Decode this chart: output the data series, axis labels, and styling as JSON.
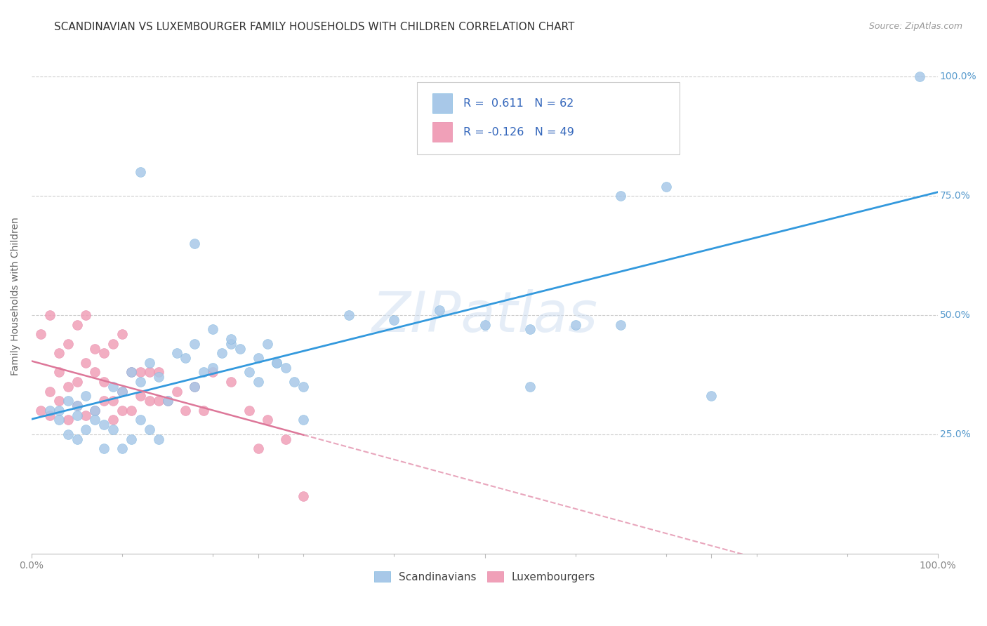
{
  "title": "SCANDINAVIAN VS LUXEMBOURGER FAMILY HOUSEHOLDS WITH CHILDREN CORRELATION CHART",
  "source": "Source: ZipAtlas.com",
  "ylabel": "Family Households with Children",
  "xlim": [
    0,
    1.0
  ],
  "ylim": [
    0,
    1.08
  ],
  "xtick_positions": [
    0.0,
    0.25,
    0.5,
    0.75,
    1.0
  ],
  "xticklabels": [
    "0.0%",
    "",
    "",
    "",
    "100.0%"
  ],
  "ytick_positions": [
    0.25,
    0.5,
    0.75,
    1.0
  ],
  "yticklabels": [
    "25.0%",
    "50.0%",
    "75.0%",
    "100.0%"
  ],
  "scandinavian_color": "#a8c8e8",
  "luxembourger_color": "#f0a0b8",
  "trend_blue": "#3399dd",
  "trend_pink": "#dd7799",
  "watermark_text": "ZIPatlas",
  "legend_R_blue": "0.611",
  "legend_N_blue": "62",
  "legend_R_pink": "-0.126",
  "legend_N_pink": "49",
  "blue_x": [
    0.02,
    0.03,
    0.04,
    0.05,
    0.05,
    0.06,
    0.07,
    0.08,
    0.09,
    0.1,
    0.11,
    0.12,
    0.13,
    0.14,
    0.15,
    0.16,
    0.17,
    0.18,
    0.19,
    0.2,
    0.21,
    0.22,
    0.23,
    0.24,
    0.25,
    0.26,
    0.27,
    0.28,
    0.29,
    0.3,
    0.03,
    0.04,
    0.05,
    0.06,
    0.07,
    0.08,
    0.09,
    0.1,
    0.11,
    0.12,
    0.13,
    0.14,
    0.18,
    0.2,
    0.22,
    0.25,
    0.27,
    0.3,
    0.35,
    0.4,
    0.45,
    0.5,
    0.55,
    0.6,
    0.65,
    0.7,
    0.18,
    0.55,
    0.65,
    0.75,
    0.98,
    0.12
  ],
  "blue_y": [
    0.3,
    0.28,
    0.32,
    0.29,
    0.31,
    0.33,
    0.3,
    0.27,
    0.35,
    0.34,
    0.38,
    0.36,
    0.4,
    0.37,
    0.32,
    0.42,
    0.41,
    0.35,
    0.38,
    0.39,
    0.42,
    0.44,
    0.43,
    0.38,
    0.41,
    0.44,
    0.4,
    0.39,
    0.36,
    0.28,
    0.3,
    0.25,
    0.24,
    0.26,
    0.28,
    0.22,
    0.26,
    0.22,
    0.24,
    0.28,
    0.26,
    0.24,
    0.44,
    0.47,
    0.45,
    0.36,
    0.4,
    0.35,
    0.5,
    0.49,
    0.51,
    0.48,
    0.47,
    0.48,
    0.75,
    0.77,
    0.65,
    0.35,
    0.48,
    0.33,
    1.0,
    0.8
  ],
  "pink_x": [
    0.01,
    0.02,
    0.02,
    0.03,
    0.03,
    0.04,
    0.04,
    0.05,
    0.05,
    0.06,
    0.06,
    0.07,
    0.07,
    0.08,
    0.08,
    0.09,
    0.09,
    0.1,
    0.1,
    0.11,
    0.11,
    0.12,
    0.12,
    0.13,
    0.13,
    0.14,
    0.14,
    0.15,
    0.16,
    0.17,
    0.18,
    0.19,
    0.2,
    0.22,
    0.24,
    0.26,
    0.01,
    0.02,
    0.03,
    0.04,
    0.05,
    0.06,
    0.07,
    0.08,
    0.09,
    0.1,
    0.25,
    0.28,
    0.3
  ],
  "pink_y": [
    0.3,
    0.29,
    0.34,
    0.32,
    0.38,
    0.28,
    0.35,
    0.31,
    0.36,
    0.29,
    0.4,
    0.3,
    0.38,
    0.32,
    0.36,
    0.28,
    0.32,
    0.3,
    0.34,
    0.3,
    0.38,
    0.33,
    0.38,
    0.32,
    0.38,
    0.32,
    0.38,
    0.32,
    0.34,
    0.3,
    0.35,
    0.3,
    0.38,
    0.36,
    0.3,
    0.28,
    0.46,
    0.5,
    0.42,
    0.44,
    0.48,
    0.5,
    0.43,
    0.42,
    0.44,
    0.46,
    0.22,
    0.24,
    0.12
  ],
  "background_color": "#ffffff",
  "grid_color": "#cccccc",
  "title_fontsize": 11,
  "axis_label_fontsize": 10,
  "tick_fontsize": 10,
  "dot_size": 100
}
